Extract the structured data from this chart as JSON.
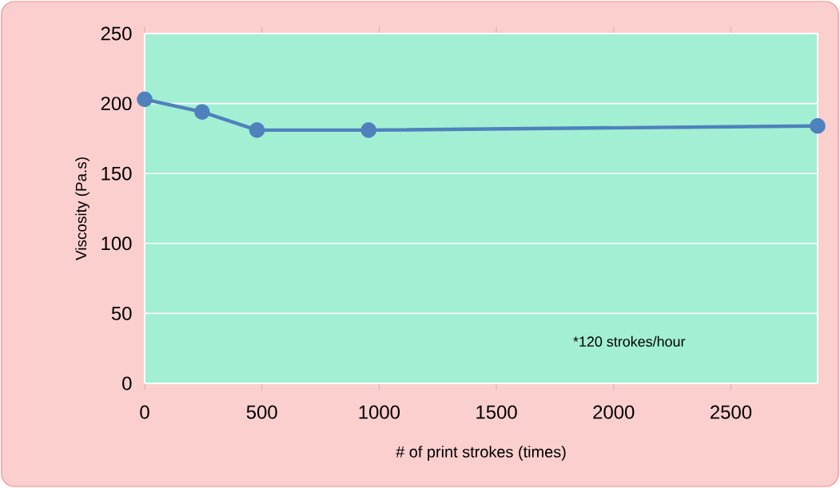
{
  "chart_data": {
    "type": "line",
    "xlabel": "# of print strokes (times)",
    "ylabel": "Viscosity (Pa.s)",
    "x": [
      0,
      245,
      479,
      955,
      2870
    ],
    "values": [
      203,
      194,
      181,
      181,
      184
    ],
    "color": "#4f81bd",
    "marker": "circle",
    "line_style": "solid",
    "xlim": [
      0,
      2870
    ],
    "ylim": [
      0,
      250
    ],
    "xticks": [
      0,
      500,
      1000,
      1500,
      2000,
      2500
    ],
    "yticks": [
      0,
      50,
      100,
      150,
      200,
      250
    ],
    "grid": "y",
    "annotations": [
      "*120 strokes/hour"
    ]
  }
}
